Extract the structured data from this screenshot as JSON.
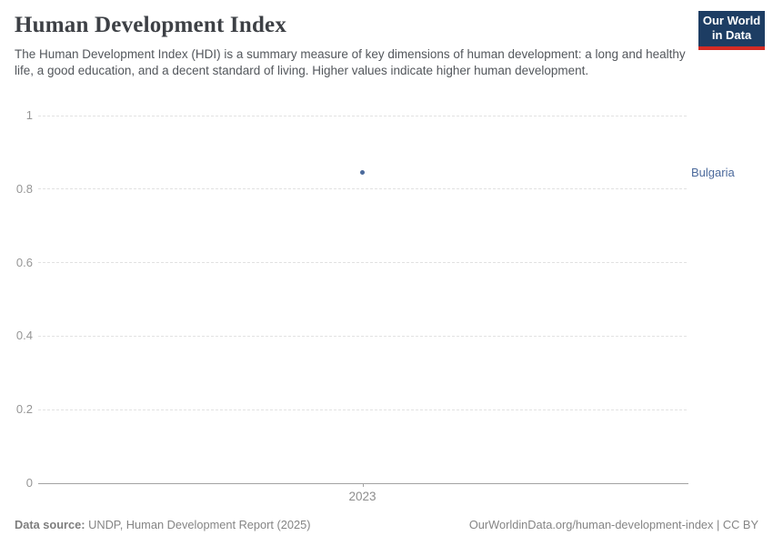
{
  "header": {
    "title": "Human Development Index",
    "subtitle": "The Human Development Index (HDI) is a summary measure of key dimensions of human development: a long and healthy life, a good education, and a decent standard of living. Higher values indicate higher human development."
  },
  "logo": {
    "line1": "Our World",
    "line2": "in Data",
    "bg_color": "#1d3d63",
    "bar_color": "#d42b24"
  },
  "chart_data": {
    "type": "scatter",
    "title": "Human Development Index",
    "series": [
      {
        "name": "Bulgaria",
        "color": "#4C6A9C",
        "points": [
          {
            "x": 2023,
            "y": 0.845
          }
        ]
      }
    ],
    "entity_label": "Bulgaria",
    "x_ticks": [
      {
        "value": 2023,
        "label": "2023"
      }
    ],
    "y_ticks": [
      {
        "value": 0,
        "label": "0"
      },
      {
        "value": 0.2,
        "label": "0.2"
      },
      {
        "value": 0.4,
        "label": "0.4"
      },
      {
        "value": 0.6,
        "label": "0.6"
      },
      {
        "value": 0.8,
        "label": "0.8"
      },
      {
        "value": 1,
        "label": "1"
      }
    ],
    "ylim": [
      0,
      1
    ],
    "grid": true,
    "gridline_style": "dashed",
    "legend_position": "entity-label-right"
  },
  "footer": {
    "source_label": "Data source:",
    "source_text": " UNDP, Human Development Report (2025)",
    "right_text": "OurWorldinData.org/human-development-index | CC BY"
  }
}
